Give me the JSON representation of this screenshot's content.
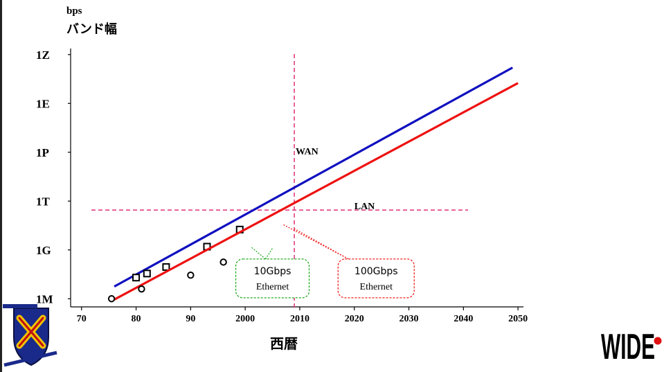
{
  "chart_data": {
    "type": "line",
    "ylabel_unit": "bps",
    "ylabel": "バンド幅",
    "xlabel": "西暦",
    "y_scale": "log10",
    "x_ticks": [
      "70",
      "80",
      "90",
      "2000",
      "2010",
      "2020",
      "2030",
      "2040",
      "2050"
    ],
    "y_ticks": [
      {
        "label": "1M",
        "exp": 6
      },
      {
        "label": "1G",
        "exp": 9
      },
      {
        "label": "1T",
        "exp": 12
      },
      {
        "label": "1P",
        "exp": 15
      },
      {
        "label": "1E",
        "exp": 18
      },
      {
        "label": "1Z",
        "exp": 21
      }
    ],
    "xlim": [
      1968,
      2051
    ],
    "ylim_exp": [
      5.5,
      21.8
    ],
    "series": [
      {
        "name": "WAN",
        "color": "#1010c0",
        "marker": "square",
        "line": [
          [
            1976,
            6.75
          ],
          [
            2049,
            20.2
          ]
        ],
        "points": [
          [
            1980,
            7.3
          ],
          [
            1982,
            7.55
          ],
          [
            1985.5,
            7.95
          ],
          [
            1993,
            9.2
          ],
          [
            1999,
            10.25
          ]
        ]
      },
      {
        "name": "LAN",
        "color": "#ee1111",
        "marker": "circle",
        "line": [
          [
            1976,
            5.95
          ],
          [
            2050,
            19.25
          ]
        ],
        "points": [
          [
            1975.5,
            6.0
          ],
          [
            1981,
            6.6
          ],
          [
            1990,
            7.45
          ],
          [
            1996,
            8.25
          ]
        ]
      }
    ],
    "reference_lines": {
      "vertical_x": 2009,
      "horizontal_exp": 11.45,
      "color": "#e0307a"
    },
    "annotations": [
      {
        "text_line1": "10Gbps",
        "text_line2": "Ethernet",
        "color": "#22aa22",
        "x": 2005,
        "y_exp": 7.25,
        "points_to": [
          [
            2001,
            9.2
          ],
          [
            2005,
            9.1
          ]
        ]
      },
      {
        "text_line1": "100Gbps",
        "text_line2": "Ethernet",
        "color": "#ee2222",
        "x": 2024,
        "y_exp": 7.25,
        "points_to": [
          [
            2007,
            10.55
          ],
          [
            2009,
            10.3
          ]
        ]
      }
    ]
  },
  "logos": {
    "left_text": "Keio University",
    "right_text": "WIDE"
  }
}
